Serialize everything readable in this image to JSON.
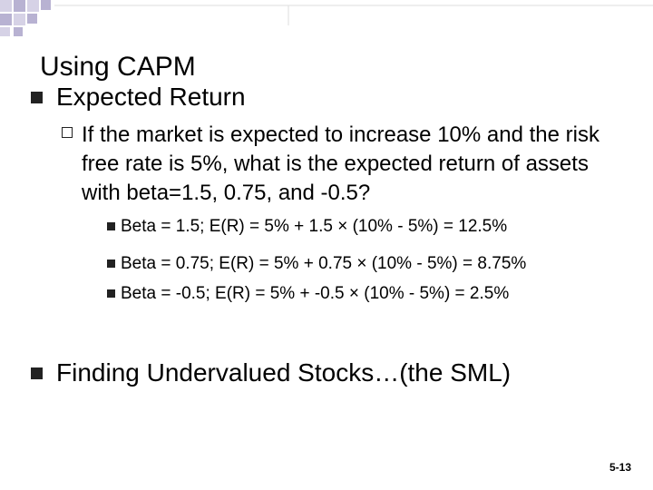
{
  "slide": {
    "title": "Using CAPM",
    "bullets": [
      {
        "text": "Expected Return",
        "sub": {
          "text": "If the market is expected to increase 10% and the risk free rate is 5%, what is the expected return of assets with beta=1.5, 0.75, and -0.5?",
          "items": [
            "Beta = 1.5;  E(R) = 5% + 1.5 × (10% - 5%) = 12.5%",
            "Beta = 0.75;  E(R) = 5% + 0.75 × (10% - 5%) = 8.75%",
            "Beta = -0.5;  E(R) = 5% + -0.5 × (10% - 5%) = 2.5%"
          ]
        }
      },
      {
        "text": "Finding Undervalued Stocks…(the SML)"
      }
    ],
    "slide_number": "5-13"
  },
  "theme": {
    "accent_light": "#d6d2e6",
    "accent_mid": "#b8b2d2",
    "bullet_color": "#222222"
  }
}
